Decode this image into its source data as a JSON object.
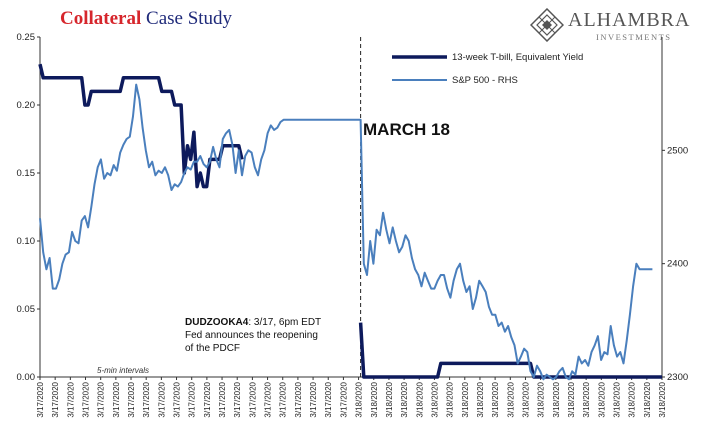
{
  "title": {
    "word1": "Collateral",
    "word2": "Case Study"
  },
  "logo": {
    "name": "ALHAMBRA",
    "sub": "INVESTMENTS"
  },
  "annotations": {
    "dudzooka_bold": "DUDZOOKA4",
    "dudzooka_rest": ": 3/17, 6pm EDT",
    "dudzooka_line2": "Fed announces the reopening",
    "dudzooka_line3": "of the PDCF",
    "march": "MARCH 18",
    "interval": "5-min intervals"
  },
  "colors": {
    "tbill": "#0d1a5c",
    "sp500": "#4a7fbd",
    "title_red": "#d6262c",
    "title_blue": "#1f2a7a"
  },
  "chart_data": {
    "type": "line",
    "x_tick_labels": [
      "3/17/2020",
      "3/17/2020",
      "3/17/2020",
      "3/17/2020",
      "3/17/2020",
      "3/17/2020",
      "3/17/2020",
      "3/17/2020",
      "3/17/2020",
      "3/17/2020",
      "3/17/2020",
      "3/17/2020",
      "3/17/2020",
      "3/17/2020",
      "3/17/2020",
      "3/17/2020",
      "3/17/2020",
      "3/17/2020",
      "3/17/2020",
      "3/17/2020",
      "3/17/2020",
      "3/18/2020",
      "3/18/2020",
      "3/18/2020",
      "3/18/2020",
      "3/18/2020",
      "3/18/2020",
      "3/18/2020",
      "3/18/2020",
      "3/18/2020",
      "3/18/2020",
      "3/18/2020",
      "3/18/2020",
      "3/18/2020",
      "3/18/2020",
      "3/18/2020",
      "3/18/2020",
      "3/18/2020",
      "3/18/2020",
      "3/18/2020",
      "3/18/2020",
      "3/18/2020"
    ],
    "left_axis": {
      "ylim": [
        0,
        0.25
      ],
      "ticks": [
        "0.00",
        "0.05",
        "0.10",
        "0.15",
        "0.20",
        "0.25"
      ]
    },
    "right_axis": {
      "ylim": [
        2300,
        2600
      ],
      "ticks": [
        "2300",
        "2400",
        "2500"
      ]
    },
    "legend_position": "top-right",
    "divider_index": 100,
    "series": [
      {
        "name": "13-week T-bill, Equivalent Yield",
        "axis": "left",
        "width": 3.5,
        "values": [
          0.23,
          0.22,
          0.22,
          0.22,
          0.22,
          0.22,
          0.22,
          0.22,
          0.22,
          0.22,
          0.22,
          0.22,
          0.22,
          0.22,
          0.2,
          0.2,
          0.21,
          0.21,
          0.21,
          0.21,
          0.21,
          0.21,
          0.21,
          0.21,
          0.21,
          0.21,
          0.22,
          0.22,
          0.22,
          0.22,
          0.22,
          0.22,
          0.22,
          0.22,
          0.22,
          0.22,
          0.22,
          0.22,
          0.21,
          0.21,
          0.21,
          0.21,
          0.2,
          0.2,
          0.2,
          0.15,
          0.17,
          0.16,
          0.18,
          0.14,
          0.15,
          0.14,
          0.14,
          0.16,
          0.16,
          0.16,
          0.16,
          0.17,
          0.17,
          0.17,
          0.17,
          0.17,
          0.17,
          0.16,
          null,
          null,
          null,
          null,
          null,
          null,
          null,
          null,
          null,
          null,
          null,
          null,
          null,
          null,
          null,
          null,
          null,
          null,
          null,
          null,
          null,
          null,
          null,
          null,
          null,
          null,
          null,
          null,
          null,
          null,
          null,
          null,
          null,
          null,
          null,
          null,
          0.04,
          0.0,
          0.0,
          0.0,
          0.0,
          0.0,
          0.0,
          0.0,
          0.0,
          0.0,
          0.0,
          0.0,
          0.0,
          0.0,
          0.0,
          0.0,
          0.0,
          0.0,
          0.0,
          0.0,
          0.0,
          0.0,
          0.0,
          0.0,
          0.0,
          0.01,
          0.01,
          0.01,
          0.01,
          0.01,
          0.01,
          0.01,
          0.01,
          0.01,
          0.01,
          0.01,
          0.01,
          0.01,
          0.01,
          0.01,
          0.01,
          0.01,
          0.01,
          0.01,
          0.01,
          0.01,
          0.01,
          0.01,
          0.01,
          0.01,
          0.01,
          0.01,
          0.01,
          0.01,
          0.0,
          0.0,
          0.0,
          0.0,
          0.0,
          0.0,
          0.0,
          0.0,
          0.0,
          0.0,
          0.0,
          0.0,
          0.0,
          0.0,
          0.0,
          0.0,
          0.0,
          0.0,
          0.0,
          0.0,
          0.0,
          0.0,
          0.0,
          0.0,
          0.0,
          0.0,
          0.0,
          0.0,
          0.0,
          0.0,
          0.0,
          0.0,
          0.0,
          0.0,
          0.0,
          0.0,
          0.0,
          0.0,
          0.0,
          0.0,
          0.0
        ]
      },
      {
        "name": "S&P 500 - RHS",
        "axis": "right",
        "width": 2,
        "values": [
          2440,
          2410,
          2395,
          2405,
          2378,
          2378,
          2386,
          2400,
          2408,
          2410,
          2428,
          2420,
          2418,
          2438,
          2442,
          2432,
          2450,
          2470,
          2485,
          2492,
          2475,
          2480,
          2478,
          2487,
          2482,
          2498,
          2505,
          2510,
          2512,
          2530,
          2558,
          2545,
          2520,
          2500,
          2485,
          2490,
          2478,
          2482,
          2480,
          2485,
          2478,
          2465,
          2470,
          2468,
          2472,
          2480,
          2485,
          2483,
          2490,
          2490,
          2495,
          2488,
          2485,
          2490,
          2503,
          2492,
          2485,
          2510,
          2515,
          2518,
          2505,
          2480,
          2500,
          2478,
          2495,
          2500,
          2498,
          2485,
          2478,
          2492,
          2500,
          2515,
          2522,
          2518,
          2520,
          2525,
          2527,
          2527,
          2527,
          2527,
          2527,
          2527,
          2527,
          2527,
          2527,
          2527,
          2527,
          2527,
          2527,
          2527,
          2527,
          2527,
          2527,
          2527,
          2527,
          2527,
          2527,
          2527,
          2527,
          2527,
          2527,
          2400,
          2390,
          2420,
          2400,
          2430,
          2425,
          2445,
          2430,
          2418,
          2432,
          2420,
          2410,
          2415,
          2425,
          2420,
          2405,
          2395,
          2390,
          2380,
          2392,
          2385,
          2378,
          2378,
          2385,
          2390,
          2390,
          2378,
          2370,
          2385,
          2395,
          2400,
          2385,
          2375,
          2380,
          2360,
          2370,
          2385,
          2380,
          2375,
          2362,
          2355,
          2355,
          2345,
          2348,
          2340,
          2345,
          2335,
          2328,
          2312,
          2318,
          2325,
          2322,
          2305,
          2300,
          2310,
          2305,
          2298,
          2302,
          2300,
          2298,
          2300,
          2305,
          2308,
          2300,
          2298,
          2305,
          2302,
          2318,
          2312,
          2315,
          2310,
          2322,
          2328,
          2336,
          2315,
          2322,
          2320,
          2345,
          2328,
          2318,
          2322,
          2312,
          2332,
          2355,
          2380,
          2400,
          2395,
          2395,
          2395,
          2395,
          2395
        ]
      }
    ]
  }
}
